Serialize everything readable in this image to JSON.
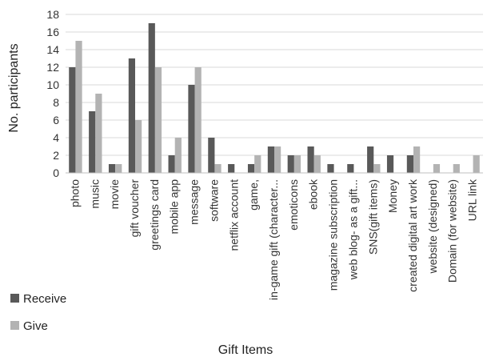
{
  "chart_data": {
    "type": "bar",
    "xlabel": "Gift Items",
    "ylabel": "No. participants",
    "ylim": [
      0,
      18
    ],
    "yticks": [
      0,
      2,
      4,
      6,
      8,
      10,
      12,
      14,
      16,
      18
    ],
    "grid": "horizontal",
    "legend_position": "bottom-left",
    "categories": [
      "photo",
      "music",
      "movie",
      "gift voucher",
      "greetings card",
      "mobile app",
      "message",
      "software",
      "netflix account",
      "game,",
      "in-game gift (character...",
      "emoticons",
      "ebook",
      "magazine subscription",
      "web blog- as a gift...",
      "SNS(gift items)",
      "Money",
      "created digital art work",
      "website (designed)",
      "Domain (for website)",
      "URL link"
    ],
    "series": [
      {
        "name": "Receive",
        "color": "#595959",
        "values": [
          12,
          7,
          1,
          13,
          17,
          2,
          10,
          4,
          1,
          1,
          3,
          2,
          3,
          1,
          1,
          3,
          2,
          2,
          0,
          0,
          0
        ]
      },
      {
        "name": "Give",
        "color": "#b3b3b3",
        "values": [
          15,
          9,
          1,
          6,
          12,
          4,
          12,
          1,
          0,
          2,
          3,
          2,
          2,
          0,
          0,
          1,
          0,
          3,
          1,
          1,
          2
        ]
      }
    ]
  }
}
